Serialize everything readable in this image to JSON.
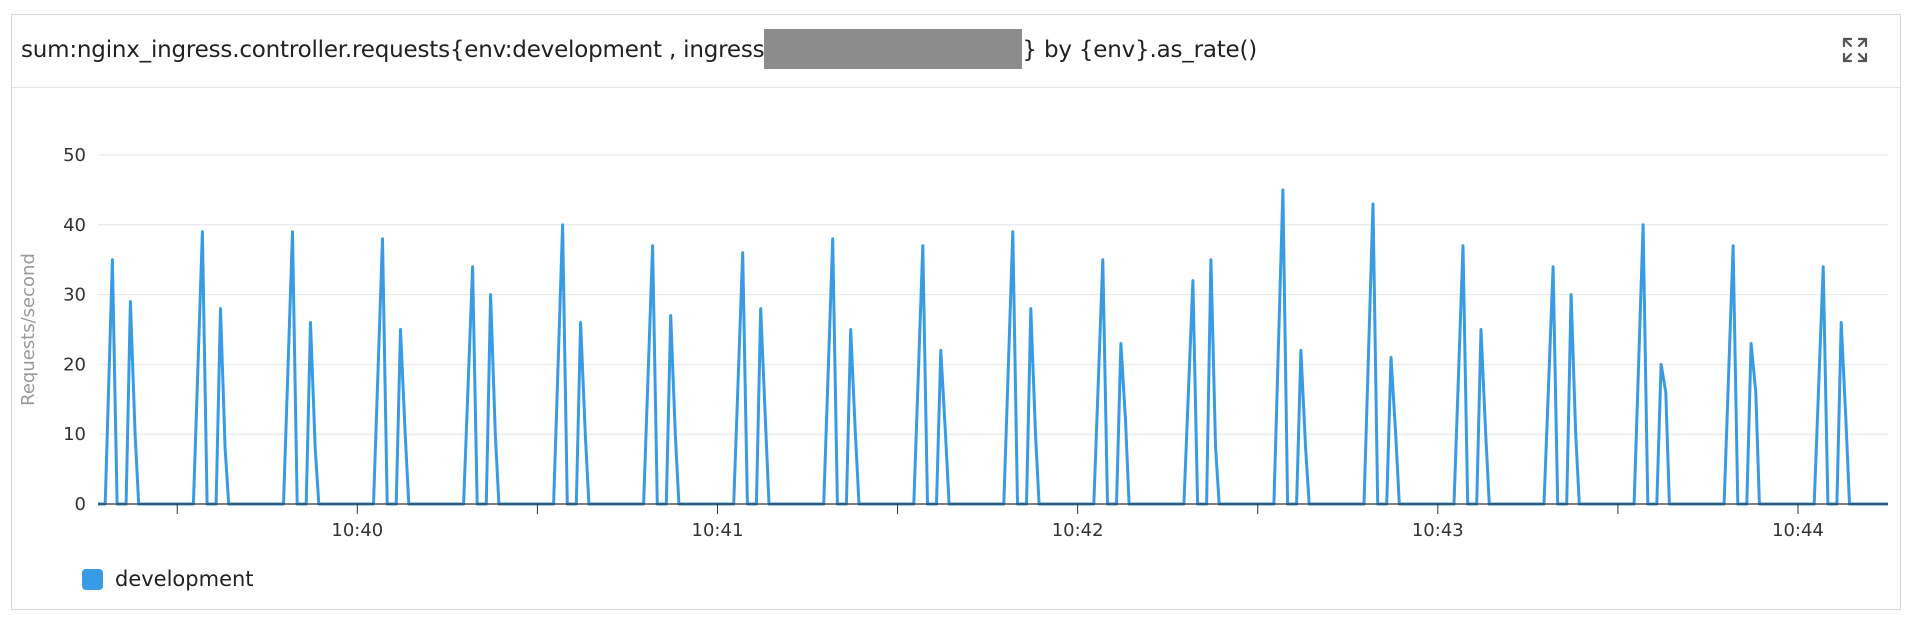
{
  "widget": {
    "title_before": "sum:nginx_ingress.controller.requests{env:development , ingress",
    "title_after": "} by {env}.as_rate()",
    "expand_icon": "expand-icon"
  },
  "colors": {
    "series": "#3a9be5",
    "grid": "#e6e6e6",
    "axis": "#333333"
  },
  "chart_data": {
    "type": "line",
    "title": "sum:nginx_ingress.controller.requests{env:development , ingress…} by {env}.as_rate()",
    "xlabel": "",
    "ylabel": "Requests/second",
    "ylim": [
      0,
      50
    ],
    "y_ticks": [
      0,
      10,
      20,
      30,
      40,
      50
    ],
    "x_domain_minutes": [
      39.28,
      44.25
    ],
    "x_ticks": [
      {
        "value": 40,
        "label": "10:40"
      },
      {
        "value": 41,
        "label": "10:41"
      },
      {
        "value": 42,
        "label": "10:42"
      },
      {
        "value": 43,
        "label": "10:43"
      },
      {
        "value": 44,
        "label": "10:44"
      }
    ],
    "minor_ticks": [
      39.5,
      40.5,
      41.5,
      42.5,
      43.5
    ],
    "legend": "bottom-left",
    "series": [
      {
        "name": "development",
        "color": "#3a9be5",
        "points": [
          [
            39.28,
            0
          ],
          [
            39.3,
            0
          ],
          [
            39.32,
            35
          ],
          [
            39.333,
            0
          ],
          [
            39.358,
            0
          ],
          [
            39.37,
            29
          ],
          [
            39.383,
            10
          ],
          [
            39.393,
            0
          ],
          [
            39.43,
            0
          ],
          [
            39.545,
            0
          ],
          [
            39.57,
            39
          ],
          [
            39.583,
            0
          ],
          [
            39.608,
            0
          ],
          [
            39.62,
            28
          ],
          [
            39.633,
            8
          ],
          [
            39.643,
            0
          ],
          [
            39.795,
            0
          ],
          [
            39.82,
            39
          ],
          [
            39.833,
            0
          ],
          [
            39.858,
            0
          ],
          [
            39.87,
            26
          ],
          [
            39.883,
            8
          ],
          [
            39.893,
            0
          ],
          [
            40.045,
            0
          ],
          [
            40.07,
            38
          ],
          [
            40.083,
            0
          ],
          [
            40.108,
            0
          ],
          [
            40.12,
            25
          ],
          [
            40.133,
            10
          ],
          [
            40.143,
            0
          ],
          [
            40.295,
            0
          ],
          [
            40.32,
            34
          ],
          [
            40.333,
            0
          ],
          [
            40.358,
            0
          ],
          [
            40.37,
            30
          ],
          [
            40.383,
            10
          ],
          [
            40.393,
            0
          ],
          [
            40.545,
            0
          ],
          [
            40.57,
            40
          ],
          [
            40.583,
            0
          ],
          [
            40.608,
            0
          ],
          [
            40.62,
            26
          ],
          [
            40.633,
            10
          ],
          [
            40.643,
            0
          ],
          [
            40.795,
            0
          ],
          [
            40.82,
            37
          ],
          [
            40.833,
            0
          ],
          [
            40.858,
            0
          ],
          [
            40.87,
            27
          ],
          [
            40.883,
            10
          ],
          [
            40.893,
            0
          ],
          [
            41.045,
            0
          ],
          [
            41.07,
            36
          ],
          [
            41.083,
            0
          ],
          [
            41.108,
            0
          ],
          [
            41.12,
            28
          ],
          [
            41.133,
            12
          ],
          [
            41.143,
            0
          ],
          [
            41.295,
            0
          ],
          [
            41.32,
            38
          ],
          [
            41.333,
            0
          ],
          [
            41.358,
            0
          ],
          [
            41.37,
            25
          ],
          [
            41.383,
            10
          ],
          [
            41.393,
            0
          ],
          [
            41.545,
            0
          ],
          [
            41.57,
            37
          ],
          [
            41.583,
            0
          ],
          [
            41.608,
            0
          ],
          [
            41.62,
            22
          ],
          [
            41.633,
            10
          ],
          [
            41.643,
            0
          ],
          [
            41.795,
            0
          ],
          [
            41.82,
            39
          ],
          [
            41.833,
            0
          ],
          [
            41.858,
            0
          ],
          [
            41.87,
            28
          ],
          [
            41.883,
            10
          ],
          [
            41.893,
            0
          ],
          [
            42.045,
            0
          ],
          [
            42.07,
            35
          ],
          [
            42.083,
            0
          ],
          [
            42.108,
            0
          ],
          [
            42.12,
            23
          ],
          [
            42.133,
            12
          ],
          [
            42.143,
            0
          ],
          [
            42.295,
            0
          ],
          [
            42.32,
            32
          ],
          [
            42.333,
            0
          ],
          [
            42.358,
            0
          ],
          [
            42.37,
            35
          ],
          [
            42.383,
            8
          ],
          [
            42.393,
            0
          ],
          [
            42.545,
            0
          ],
          [
            42.57,
            45
          ],
          [
            42.583,
            0
          ],
          [
            42.608,
            0
          ],
          [
            42.62,
            22
          ],
          [
            42.633,
            8
          ],
          [
            42.643,
            0
          ],
          [
            42.795,
            0
          ],
          [
            42.82,
            43
          ],
          [
            42.833,
            0
          ],
          [
            42.858,
            0
          ],
          [
            42.87,
            21
          ],
          [
            42.883,
            10
          ],
          [
            42.893,
            0
          ],
          [
            43.045,
            0
          ],
          [
            43.07,
            37
          ],
          [
            43.083,
            0
          ],
          [
            43.108,
            0
          ],
          [
            43.12,
            25
          ],
          [
            43.133,
            10
          ],
          [
            43.143,
            0
          ],
          [
            43.295,
            0
          ],
          [
            43.32,
            34
          ],
          [
            43.333,
            0
          ],
          [
            43.358,
            0
          ],
          [
            43.37,
            30
          ],
          [
            43.383,
            10
          ],
          [
            43.393,
            0
          ],
          [
            43.545,
            0
          ],
          [
            43.57,
            40
          ],
          [
            43.583,
            0
          ],
          [
            43.608,
            0
          ],
          [
            43.62,
            20
          ],
          [
            43.633,
            16
          ],
          [
            43.643,
            0
          ],
          [
            43.795,
            0
          ],
          [
            43.82,
            37
          ],
          [
            43.833,
            0
          ],
          [
            43.858,
            0
          ],
          [
            43.87,
            23
          ],
          [
            43.883,
            16
          ],
          [
            43.893,
            0
          ],
          [
            44.045,
            0
          ],
          [
            44.07,
            34
          ],
          [
            44.083,
            0
          ],
          [
            44.108,
            0
          ],
          [
            44.12,
            26
          ],
          [
            44.133,
            12
          ],
          [
            44.143,
            0
          ],
          [
            44.25,
            0
          ]
        ]
      }
    ]
  },
  "legend": {
    "items": [
      {
        "label": "development"
      }
    ]
  }
}
